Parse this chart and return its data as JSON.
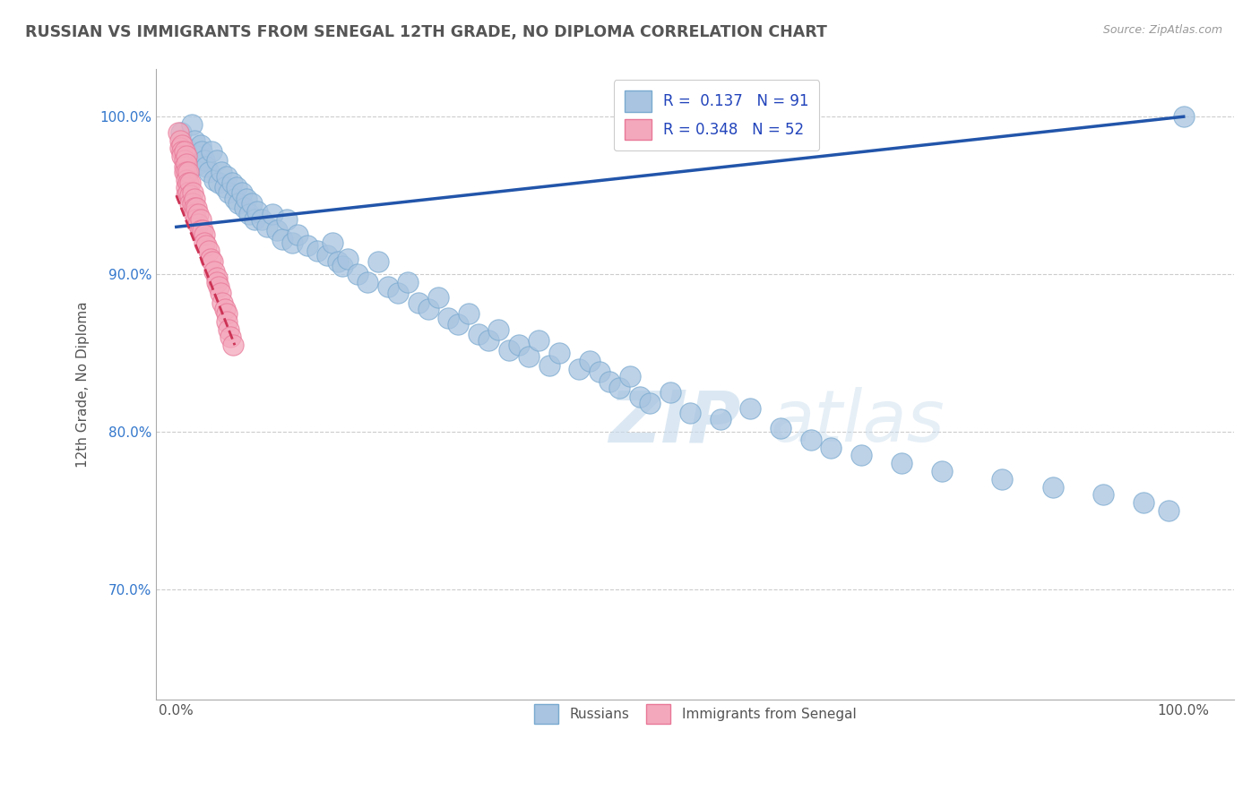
{
  "title": "RUSSIAN VS IMMIGRANTS FROM SENEGAL 12TH GRADE, NO DIPLOMA CORRELATION CHART",
  "source": "Source: ZipAtlas.com",
  "ylabel": "12th Grade, No Diploma",
  "blue_color": "#a8c4e0",
  "pink_color": "#f4a8bc",
  "blue_edge": "#7aaad0",
  "pink_edge": "#e87898",
  "blue_line_color": "#2255aa",
  "pink_line_color": "#cc3355",
  "watermark_zip": "ZIP",
  "watermark_atlas": "atlas",
  "legend_entries": [
    {
      "r": "R =  0.137",
      "n": "N = 91"
    },
    {
      "r": "R = 0.348",
      "n": "N = 52"
    }
  ],
  "russians_x": [
    0.005,
    0.01,
    0.012,
    0.015,
    0.018,
    0.02,
    0.022,
    0.024,
    0.025,
    0.028,
    0.03,
    0.032,
    0.035,
    0.038,
    0.04,
    0.042,
    0.045,
    0.048,
    0.05,
    0.052,
    0.055,
    0.058,
    0.06,
    0.062,
    0.065,
    0.068,
    0.07,
    0.072,
    0.075,
    0.078,
    0.08,
    0.085,
    0.09,
    0.095,
    0.1,
    0.105,
    0.11,
    0.115,
    0.12,
    0.13,
    0.14,
    0.15,
    0.155,
    0.16,
    0.165,
    0.17,
    0.18,
    0.19,
    0.2,
    0.21,
    0.22,
    0.23,
    0.24,
    0.25,
    0.26,
    0.27,
    0.28,
    0.29,
    0.3,
    0.31,
    0.32,
    0.33,
    0.34,
    0.35,
    0.36,
    0.37,
    0.38,
    0.4,
    0.41,
    0.42,
    0.43,
    0.44,
    0.45,
    0.46,
    0.47,
    0.49,
    0.51,
    0.54,
    0.57,
    0.6,
    0.63,
    0.65,
    0.68,
    0.72,
    0.76,
    0.82,
    0.87,
    0.92,
    0.96,
    0.985,
    1.0
  ],
  "russians_y": [
    0.99,
    0.98,
    0.975,
    0.995,
    0.985,
    0.975,
    0.97,
    0.982,
    0.978,
    0.972,
    0.968,
    0.965,
    0.978,
    0.96,
    0.972,
    0.958,
    0.965,
    0.955,
    0.962,
    0.952,
    0.958,
    0.948,
    0.955,
    0.945,
    0.952,
    0.942,
    0.948,
    0.938,
    0.945,
    0.935,
    0.94,
    0.935,
    0.93,
    0.938,
    0.928,
    0.922,
    0.935,
    0.92,
    0.925,
    0.918,
    0.915,
    0.912,
    0.92,
    0.908,
    0.905,
    0.91,
    0.9,
    0.895,
    0.908,
    0.892,
    0.888,
    0.895,
    0.882,
    0.878,
    0.885,
    0.872,
    0.868,
    0.875,
    0.862,
    0.858,
    0.865,
    0.852,
    0.855,
    0.848,
    0.858,
    0.842,
    0.85,
    0.84,
    0.845,
    0.838,
    0.832,
    0.828,
    0.835,
    0.822,
    0.818,
    0.825,
    0.812,
    0.808,
    0.815,
    0.802,
    0.795,
    0.79,
    0.785,
    0.78,
    0.775,
    0.77,
    0.765,
    0.76,
    0.755,
    0.75,
    1.0
  ],
  "senegal_x": [
    0.002,
    0.004,
    0.004,
    0.006,
    0.006,
    0.006,
    0.008,
    0.008,
    0.008,
    0.008,
    0.01,
    0.01,
    0.01,
    0.01,
    0.01,
    0.01,
    0.012,
    0.012,
    0.012,
    0.014,
    0.014,
    0.014,
    0.016,
    0.016,
    0.018,
    0.018,
    0.018,
    0.02,
    0.02,
    0.022,
    0.022,
    0.024,
    0.024,
    0.026,
    0.028,
    0.028,
    0.03,
    0.032,
    0.034,
    0.036,
    0.038,
    0.04,
    0.04,
    0.042,
    0.044,
    0.046,
    0.048,
    0.05,
    0.05,
    0.052,
    0.054,
    0.056
  ],
  "senegal_y": [
    0.99,
    0.985,
    0.98,
    0.982,
    0.978,
    0.975,
    0.978,
    0.972,
    0.968,
    0.965,
    0.975,
    0.97,
    0.965,
    0.96,
    0.955,
    0.95,
    0.965,
    0.958,
    0.952,
    0.958,
    0.95,
    0.945,
    0.952,
    0.945,
    0.948,
    0.942,
    0.938,
    0.942,
    0.935,
    0.938,
    0.932,
    0.935,
    0.928,
    0.928,
    0.925,
    0.92,
    0.918,
    0.915,
    0.91,
    0.908,
    0.902,
    0.898,
    0.895,
    0.892,
    0.888,
    0.882,
    0.878,
    0.875,
    0.87,
    0.865,
    0.86,
    0.855
  ],
  "blue_trend": [
    0.0,
    1.0,
    0.93,
    1.0
  ],
  "pink_trend": [
    0.0,
    0.058,
    0.95,
    0.855
  ],
  "xlim": [
    -0.02,
    1.05
  ],
  "ylim": [
    0.63,
    1.03
  ],
  "yticks": [
    0.7,
    0.8,
    0.9,
    1.0
  ],
  "ytick_labels": [
    "70.0%",
    "80.0%",
    "90.0%",
    "100.0%"
  ],
  "xtick_labels": [
    "0.0%",
    "100.0%"
  ]
}
